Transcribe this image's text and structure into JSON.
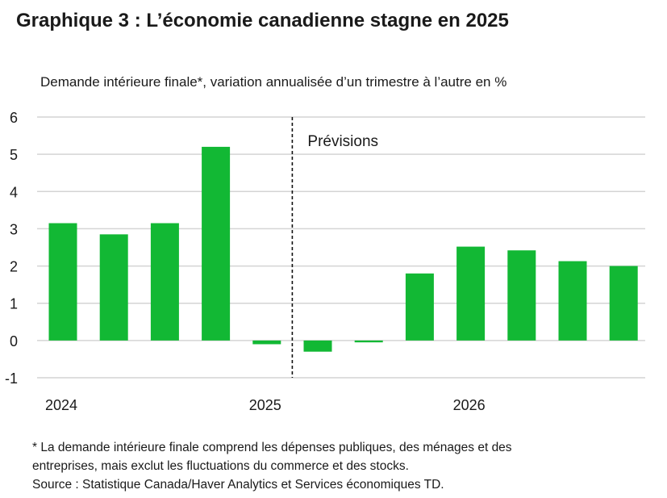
{
  "chart_data": {
    "type": "bar",
    "title": "Graphique 3 : L’économie canadienne stagne en 2025",
    "subtitle": "Demande intérieure finale*, variation annualisée d’un trimestre à l’autre en %",
    "x_labels": [
      "2024",
      "2025",
      "2026"
    ],
    "x_label_quarter_index": [
      0,
      4,
      8
    ],
    "values": [
      3.15,
      2.85,
      3.15,
      5.2,
      -0.1,
      -0.3,
      -0.05,
      1.8,
      2.52,
      2.42,
      2.13,
      2.0
    ],
    "yticks": [
      "6",
      "5",
      "4",
      "3",
      "2",
      "1",
      "0",
      "-1"
    ],
    "ylim": [
      -1,
      6
    ],
    "grid": true,
    "bar_color": "#12b834",
    "forecast_divider_after_index": 4,
    "annotation": "Prévisions"
  },
  "footnote": {
    "line1": "* La demande intérieure finale comprend les dépenses publiques, des ménages et des",
    "line2": "entreprises, mais exclut les fluctuations du commerce et des stocks.",
    "source": "Source : Statistique Canada/Haver Analytics et Services économiques TD."
  }
}
